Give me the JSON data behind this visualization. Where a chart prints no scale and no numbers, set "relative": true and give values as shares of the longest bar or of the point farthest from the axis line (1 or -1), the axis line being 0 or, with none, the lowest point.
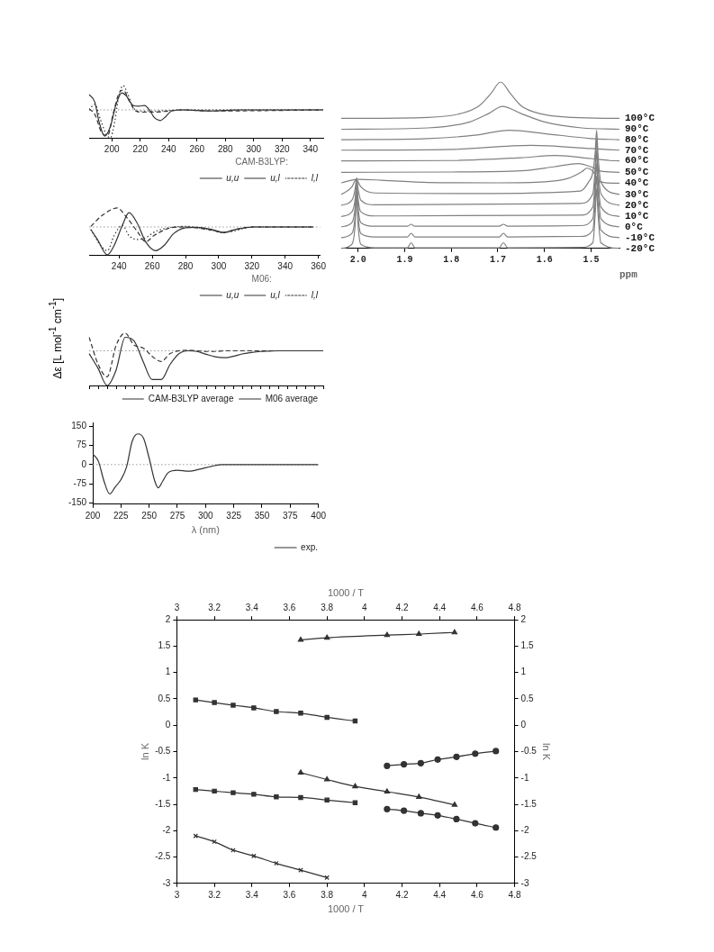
{
  "chart_data": [
    {
      "type": "line",
      "relative": true,
      "tick_labels": "x",
      "grid": false,
      "marker": "none",
      "xlim": [
        184,
        349
      ],
      "xticks": [
        200,
        220,
        240,
        260,
        280,
        300,
        320,
        340
      ],
      "legend": "bottom right",
      "legend_title": "CAM-B3LYP:",
      "ref_lines": [
        {
          "axis": "y",
          "value": 0,
          "color": "#999999",
          "line_style": "dotted"
        }
      ],
      "series": [
        {
          "name": "u,u",
          "color": "#333333",
          "line_style": "solid",
          "x": [
            184,
            188,
            191,
            195,
            199,
            203,
            207,
            210,
            215,
            219,
            223,
            227,
            230,
            234,
            238,
            242,
            250,
            270,
            290,
            349
          ],
          "values": [
            0.55,
            0.28,
            -0.43,
            -0.94,
            -0.59,
            0.2,
            0.61,
            0.51,
            0.16,
            0.13,
            0.16,
            -0.04,
            -0.28,
            -0.38,
            -0.24,
            -0.04,
            0,
            -0.04,
            0,
            0
          ]
        },
        {
          "name": "u,l",
          "color": "#333333",
          "line_style": "dashed",
          "x": [
            184,
            188,
            193,
            197,
            201,
            205,
            208,
            212,
            216,
            220,
            230,
            240,
            250,
            270,
            349
          ],
          "values": [
            0.04,
            -0.16,
            -0.83,
            -0.92,
            -0.12,
            0.59,
            0.71,
            0.35,
            0,
            -0.08,
            -0.08,
            -0.04,
            0,
            -0.04,
            0
          ]
        },
        {
          "name": "l,l",
          "color": "#333333",
          "line_style": "dotted",
          "x": [
            184,
            188,
            192,
            196,
            199,
            202,
            205,
            208,
            211,
            214,
            218,
            230,
            250,
            349
          ],
          "values": [
            0,
            0.2,
            -0.35,
            -0.87,
            -1,
            -0.43,
            0.51,
            0.87,
            0.59,
            0.2,
            -0.04,
            -0.04,
            0,
            0
          ]
        }
      ]
    },
    {
      "type": "line",
      "relative": true,
      "tick_labels": "x",
      "grid": false,
      "marker": "none",
      "xlim": [
        222,
        361
      ],
      "xticks": [
        240,
        260,
        280,
        300,
        320,
        340,
        360
      ],
      "legend": "bottom right",
      "legend_title": "M06:",
      "ref_lines": [
        {
          "axis": "y",
          "value": 0,
          "color": "#999999",
          "line_style": "dotted"
        }
      ],
      "series": [
        {
          "name": "u,u",
          "color": "#333333",
          "line_style": "solid",
          "x": [
            223,
            227,
            233,
            237,
            242,
            246,
            251,
            256,
            262,
            267,
            273,
            280,
            287,
            296,
            303,
            310,
            321,
            357
          ],
          "values": [
            -0.09,
            -0.45,
            -1,
            -0.67,
            0.06,
            0.51,
            0.13,
            -0.53,
            -0.85,
            -0.67,
            -0.23,
            -0.03,
            -0.01,
            -0.09,
            -0.2,
            -0.09,
            0,
            0
          ]
        },
        {
          "name": "u,l",
          "color": "#333333",
          "line_style": "dashed",
          "x": [
            223,
            230,
            239,
            244,
            251,
            256,
            261,
            268,
            273,
            280,
            296,
            303,
            310,
            321,
            357
          ],
          "values": [
            0.02,
            0.42,
            0.68,
            0.39,
            -0.16,
            -0.53,
            -0.31,
            -0.09,
            -0.01,
            0,
            -0.12,
            -0.2,
            -0.09,
            0,
            0
          ]
        },
        {
          "name": "l,l",
          "color": "#333333",
          "line_style": "dotted",
          "x": [
            223,
            229,
            233,
            237,
            242,
            246,
            251,
            256,
            262,
            268,
            273,
            280,
            296,
            303,
            321,
            357
          ],
          "values": [
            -0.09,
            -0.67,
            -0.85,
            -0.31,
            0.06,
            -0.31,
            -0.45,
            -0.38,
            -0.16,
            -0.05,
            0,
            0.02,
            -0.12,
            -0.2,
            0,
            0
          ]
        }
      ]
    },
    {
      "type": "line",
      "relative": true,
      "tick_labels": false,
      "grid": false,
      "marker": "none",
      "categories": [
        null,
        null,
        null,
        null,
        null,
        null,
        null,
        null,
        null,
        null,
        null,
        null,
        null,
        null,
        null,
        null,
        null,
        null,
        null,
        null,
        null,
        null,
        null,
        null,
        null,
        null,
        null
      ],
      "legend": "bottom right",
      "ref_lines": [
        {
          "axis": "y",
          "value": 0,
          "color": "#999999",
          "line_style": "dotted"
        }
      ],
      "series": [
        {
          "name": "CAM-B3LYP average",
          "color": "#333333",
          "line_style": "dashed",
          "values": [
            0.39,
            -0.39,
            -0.75,
            0.16,
            0.51,
            0.16,
            0.08,
            -0.16,
            -0.31,
            -0.08,
            0,
            0.02,
            0,
            -0.02,
            -0.02,
            0,
            0,
            0,
            0,
            0,
            0,
            0,
            0,
            0,
            0,
            0,
            0
          ]
        },
        {
          "name": "M06 average",
          "color": "#333333",
          "line_style": "solid",
          "values": [
            -0.08,
            -0.51,
            -1,
            -0.55,
            0.39,
            0.28,
            -0.31,
            -0.83,
            -0.83,
            -0.39,
            -0.08,
            0,
            -0.02,
            -0.1,
            -0.17,
            -0.2,
            -0.16,
            -0.09,
            -0.05,
            -0.02,
            -0.01,
            0,
            0,
            0,
            0,
            0,
            0
          ]
        }
      ]
    },
    {
      "type": "line",
      "grid": false,
      "marker": "none",
      "xlabel": "λ (nm)",
      "ylabel": "Δε [L mol$^{-1}$ cm$^{-1}$]",
      "xlim": [
        200,
        400
      ],
      "xticks": [
        200,
        225,
        250,
        275,
        300,
        325,
        350,
        375,
        400
      ],
      "ylim": [
        -155,
        165
      ],
      "yticks": [
        -150,
        -75,
        0,
        75,
        150
      ],
      "legend": "bottom right",
      "ref_lines": [
        {
          "axis": "y",
          "value": 0,
          "color": "#999999",
          "line_style": "dotted"
        }
      ],
      "series": [
        {
          "name": "exp.",
          "color": "#333333",
          "line_style": "solid",
          "x": [
            200,
            205,
            210,
            215,
            220,
            225,
            230,
            235,
            240,
            245,
            250,
            255,
            258,
            262,
            267,
            275,
            285,
            295,
            305,
            315,
            400
          ],
          "values": [
            41,
            13,
            -65,
            -115,
            -87,
            -59,
            -9,
            92,
            120,
            103,
            25,
            -65,
            -91,
            -65,
            -31,
            -22,
            -26,
            -18,
            -7,
            0,
            0
          ]
        }
      ]
    },
    {
      "type": "line",
      "relative": true,
      "tick_labels": "x",
      "grid": false,
      "marker": "none",
      "legend": false,
      "xlabel": "ppm",
      "xlim": [
        2.036,
        1.439
      ],
      "xticks": [
        {
          "value": 2,
          "label": "2.0"
        },
        1.9,
        1.8,
        1.7,
        1.6,
        1.5
      ],
      "series": [
        {
          "name": "100°C",
          "color": "#808080",
          "x": [
            2.036,
            1.85,
            1.78,
            1.74,
            1.715,
            1.694,
            1.673,
            1.65,
            1.61,
            1.54,
            1.439
          ],
          "values": [
            0.781,
            0.787,
            0.81,
            0.857,
            0.93,
            1,
            0.93,
            0.857,
            0.81,
            0.787,
            0.781
          ]
        },
        {
          "name": "90°C",
          "color": "#808080",
          "x": [
            2.036,
            1.85,
            1.76,
            1.72,
            1.69,
            1.65,
            1.6,
            1.52,
            1.439
          ],
          "values": [
            0.716,
            0.724,
            0.76,
            0.81,
            0.853,
            0.81,
            0.76,
            0.724,
            0.716
          ]
        },
        {
          "name": "80°C",
          "color": "#808080",
          "x": [
            2.036,
            1.85,
            1.75,
            1.675,
            1.6,
            1.5,
            1.439
          ],
          "values": [
            0.653,
            0.66,
            0.68,
            0.71,
            0.69,
            0.66,
            0.653
          ]
        },
        {
          "name": "70°C",
          "color": "#808080",
          "x": [
            2.036,
            1.8,
            1.629,
            1.5,
            1.439
          ],
          "values": [
            0.59,
            0.595,
            0.619,
            0.6,
            0.59
          ]
        },
        {
          "name": "60°C",
          "color": "#808080",
          "x": [
            2.036,
            1.8,
            1.65,
            1.576,
            1.5,
            1.46,
            1.439
          ],
          "values": [
            0.526,
            0.528,
            0.545,
            0.558,
            0.54,
            0.528,
            0.526
          ]
        },
        {
          "name": "50°C",
          "color": "#808080",
          "x": [
            2.036,
            1.8,
            1.65,
            1.58,
            1.527,
            1.5,
            1.48,
            1.439
          ],
          "values": [
            0.457,
            0.459,
            0.466,
            0.49,
            0.51,
            0.49,
            0.465,
            0.457
          ]
        },
        {
          "name": "40°C",
          "color": "#808080",
          "x": [
            2.036,
            2,
            1.95,
            1.85,
            1.7,
            1.6,
            1.55,
            1.52,
            1.509,
            1.495,
            1.485,
            1.47,
            1.439
          ],
          "values": [
            0.394,
            0.415,
            0.41,
            0.396,
            0.394,
            0.4,
            0.42,
            0.46,
            0.482,
            0.46,
            0.41,
            0.395,
            0.392
          ]
        },
        {
          "name": "30°C",
          "color": "#808080",
          "x": [
            2.036,
            2.013,
            2.006,
            2.003,
            2,
            1.994,
            1.964,
            1.751,
            1.523,
            1.505,
            1.496,
            1.491,
            1.488,
            1.485,
            1.479,
            1.439
          ],
          "values": [
            0.324,
            0.37,
            0.41,
            0.415,
            0.4,
            0.37,
            0.333,
            0.33,
            0.345,
            0.4,
            0.46,
            0.58,
            0.71,
            0.56,
            0.4,
            0.324
          ]
        },
        {
          "name": "20°C",
          "color": "#808080",
          "x": [
            2.036,
            2.013,
            2.006,
            2.003,
            2,
            1.994,
            1.964,
            1.523,
            1.496,
            1.491,
            1.488,
            1.485,
            1.479,
            1.439
          ],
          "values": [
            0.259,
            0.29,
            0.36,
            0.425,
            0.36,
            0.29,
            0.262,
            0.27,
            0.33,
            0.49,
            0.653,
            0.49,
            0.33,
            0.259
          ]
        },
        {
          "name": "10°C",
          "color": "#808080",
          "x": [
            2.036,
            2.013,
            2.006,
            2.003,
            2,
            1.994,
            1.964,
            1.523,
            1.496,
            1.491,
            1.488,
            1.485,
            1.479,
            1.439
          ],
          "values": [
            0.192,
            0.22,
            0.3,
            0.406,
            0.3,
            0.22,
            0.195,
            0.2,
            0.25,
            0.42,
            0.587,
            0.42,
            0.25,
            0.192
          ]
        },
        {
          "name": "0°C",
          "color": "#808080",
          "x": [
            2.036,
            2.013,
            2.006,
            2.003,
            2,
            1.994,
            1.964,
            1.894,
            1.886,
            1.878,
            1.697,
            1.688,
            1.679,
            1.523,
            1.496,
            1.491,
            1.488,
            1.485,
            1.479,
            1.439
          ],
          "values": [
            0.13,
            0.155,
            0.25,
            0.377,
            0.25,
            0.155,
            0.133,
            0.133,
            0.145,
            0.133,
            0.133,
            0.145,
            0.133,
            0.137,
            0.18,
            0.36,
            0.51,
            0.36,
            0.18,
            0.13
          ]
        },
        {
          "name": "-10°C",
          "color": "#808080",
          "x": [
            2.036,
            2.013,
            2.006,
            2.003,
            2,
            1.994,
            1.964,
            1.894,
            1.886,
            1.878,
            1.697,
            1.688,
            1.679,
            1.523,
            1.496,
            1.491,
            1.488,
            1.485,
            1.479,
            1.439
          ],
          "values": [
            0.065,
            0.09,
            0.2,
            0.358,
            0.2,
            0.09,
            0.069,
            0.069,
            0.091,
            0.069,
            0.069,
            0.091,
            0.069,
            0.072,
            0.11,
            0.28,
            0.434,
            0.28,
            0.11,
            0.065
          ]
        },
        {
          "name": "-20°C",
          "color": "#808080",
          "x": [
            2.036,
            2.013,
            2.006,
            2.003,
            2,
            1.994,
            1.964,
            1.894,
            1.886,
            1.878,
            1.697,
            1.688,
            1.679,
            1.523,
            1.496,
            1.491,
            1.488,
            1.485,
            1.479,
            1.439
          ],
          "values": [
            0,
            0.025,
            0.148,
            0.339,
            0.148,
            0.025,
            0.004,
            0.004,
            0.034,
            0.004,
            0.004,
            0.034,
            0.004,
            0.006,
            0.034,
            0.21,
            0.358,
            0.21,
            0.034,
            0
          ]
        }
      ]
    },
    {
      "type": "line",
      "grid": false,
      "legend": false,
      "line_style": "solid",
      "xlabel": "1000 / T",
      "x2label": "1000 / T",
      "ylabel": "ln K",
      "y2label": "ln K",
      "xlim": [
        3,
        4.8
      ],
      "xticks": [
        3,
        3.2,
        3.4,
        3.6,
        3.8,
        4,
        4.2,
        4.4,
        4.6,
        4.8
      ],
      "x2lim": [
        3,
        4.8
      ],
      "x2ticks": [
        3,
        3.2,
        3.4,
        3.6,
        3.8,
        4,
        4.2,
        4.4,
        4.6,
        4.8
      ],
      "ylim": [
        -3,
        2
      ],
      "yticks": [
        -3,
        -2.5,
        -2,
        -1.5,
        -1,
        -0.5,
        0,
        0.5,
        1,
        1.5,
        2
      ],
      "y2lim": [
        -3,
        2
      ],
      "y2ticks": [
        -3,
        -2.5,
        -2,
        -1.5,
        -1,
        -0.5,
        0,
        0.5,
        1,
        1.5,
        2
      ],
      "series": [
        {
          "color": "#333333",
          "marker": "triangle",
          "x": [
            3.66,
            3.8,
            4.12,
            4.29,
            4.48
          ],
          "values": [
            1.62,
            1.66,
            1.71,
            1.73,
            1.76
          ]
        },
        {
          "color": "#333333",
          "marker": "square",
          "x": [
            3.1,
            3.2,
            3.3,
            3.41,
            3.53,
            3.66,
            3.8,
            3.95
          ],
          "values": [
            0.48,
            0.43,
            0.38,
            0.33,
            0.26,
            0.23,
            0.15,
            0.08
          ]
        },
        {
          "color": "#333333",
          "marker": "square",
          "x": [
            3.1,
            3.2,
            3.3,
            3.41,
            3.53,
            3.66,
            3.8,
            3.95
          ],
          "values": [
            -1.22,
            -1.25,
            -1.28,
            -1.31,
            -1.36,
            -1.37,
            -1.42,
            -1.47
          ]
        },
        {
          "color": "#333333",
          "marker": "cross",
          "x": [
            3.1,
            3.2,
            3.3,
            3.41,
            3.53,
            3.66,
            3.8
          ],
          "values": [
            -2.1,
            -2.21,
            -2.37,
            -2.48,
            -2.62,
            -2.75,
            -2.89
          ]
        },
        {
          "color": "#333333",
          "marker": "triangle",
          "x": [
            3.66,
            3.8,
            3.95,
            4.12,
            4.29,
            4.48
          ],
          "values": [
            -0.9,
            -1.03,
            -1.16,
            -1.26,
            -1.36,
            -1.51
          ]
        },
        {
          "color": "#333333",
          "marker": "circle",
          "x": [
            4.12,
            4.21,
            4.3,
            4.39,
            4.49,
            4.59,
            4.7
          ],
          "values": [
            -0.77,
            -0.74,
            -0.72,
            -0.65,
            -0.6,
            -0.54,
            -0.49
          ]
        },
        {
          "color": "#333333",
          "marker": "circle",
          "x": [
            4.12,
            4.21,
            4.3,
            4.39,
            4.49,
            4.59,
            4.7
          ],
          "values": [
            -1.59,
            -1.62,
            -1.67,
            -1.71,
            -1.78,
            -1.86,
            -1.94
          ]
        }
      ]
    }
  ]
}
